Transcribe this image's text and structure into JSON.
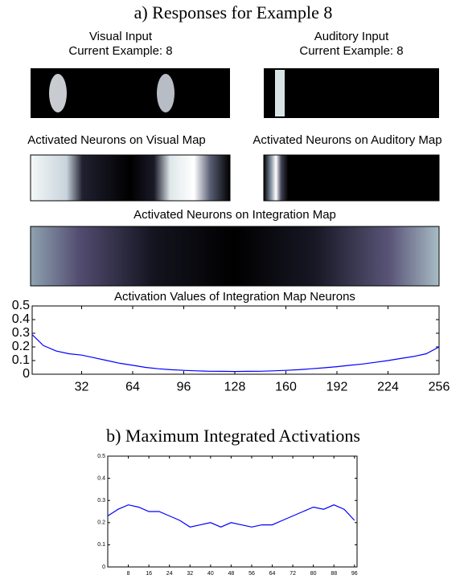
{
  "panel_a_title": "a) Responses for Example 8",
  "maps": {
    "visual_input": [
      "Visual Input",
      "Current Example: 8"
    ],
    "auditory_input": [
      "Auditory Input",
      "Current Example: 8"
    ],
    "visual_map": "Activated Neurons on Visual Map",
    "auditory_map": "Activated Neurons on Auditory Map",
    "integration_map": "Activated Neurons on Integration Map"
  },
  "chart_data": [
    {
      "type": "line",
      "title": "Activation Values of Integration Map Neurons",
      "color": "#0000ff",
      "x": [
        1,
        8,
        16,
        24,
        32,
        40,
        48,
        56,
        64,
        72,
        80,
        88,
        96,
        104,
        112,
        120,
        128,
        136,
        144,
        152,
        160,
        168,
        176,
        184,
        192,
        200,
        208,
        216,
        224,
        232,
        240,
        248,
        256
      ],
      "values": [
        0.29,
        0.21,
        0.17,
        0.15,
        0.14,
        0.12,
        0.1,
        0.08,
        0.065,
        0.05,
        0.04,
        0.033,
        0.028,
        0.025,
        0.022,
        0.021,
        0.02,
        0.021,
        0.022,
        0.025,
        0.028,
        0.033,
        0.04,
        0.047,
        0.055,
        0.065,
        0.075,
        0.087,
        0.1,
        0.115,
        0.13,
        0.15,
        0.2
      ],
      "xlim": [
        1,
        256
      ],
      "xticks": [
        32,
        64,
        96,
        128,
        160,
        192,
        224,
        256
      ],
      "ylim": [
        0,
        0.5
      ],
      "yticks": [
        0,
        0.1,
        0.2,
        0.3,
        0.4,
        0.5
      ]
    },
    {
      "type": "line",
      "title": "b) Maximum Integrated Activations",
      "color": "#0000ff",
      "x": [
        0,
        4,
        8,
        12,
        16,
        20,
        24,
        28,
        32,
        36,
        40,
        44,
        48,
        52,
        56,
        60,
        64,
        68,
        72,
        76,
        80,
        84,
        88,
        92,
        96
      ],
      "values": [
        0.23,
        0.26,
        0.28,
        0.27,
        0.25,
        0.25,
        0.23,
        0.21,
        0.18,
        0.19,
        0.2,
        0.18,
        0.2,
        0.19,
        0.18,
        0.19,
        0.19,
        0.21,
        0.23,
        0.25,
        0.27,
        0.26,
        0.28,
        0.26,
        0.21
      ],
      "xlim": [
        0,
        97
      ],
      "xticks": [
        8,
        16,
        24,
        32,
        40,
        48,
        56,
        64,
        72,
        80,
        88,
        96
      ],
      "ylim": [
        0,
        0.5
      ],
      "yticks": [
        0,
        0.1,
        0.2,
        0.3,
        0.4,
        0.5
      ]
    }
  ]
}
